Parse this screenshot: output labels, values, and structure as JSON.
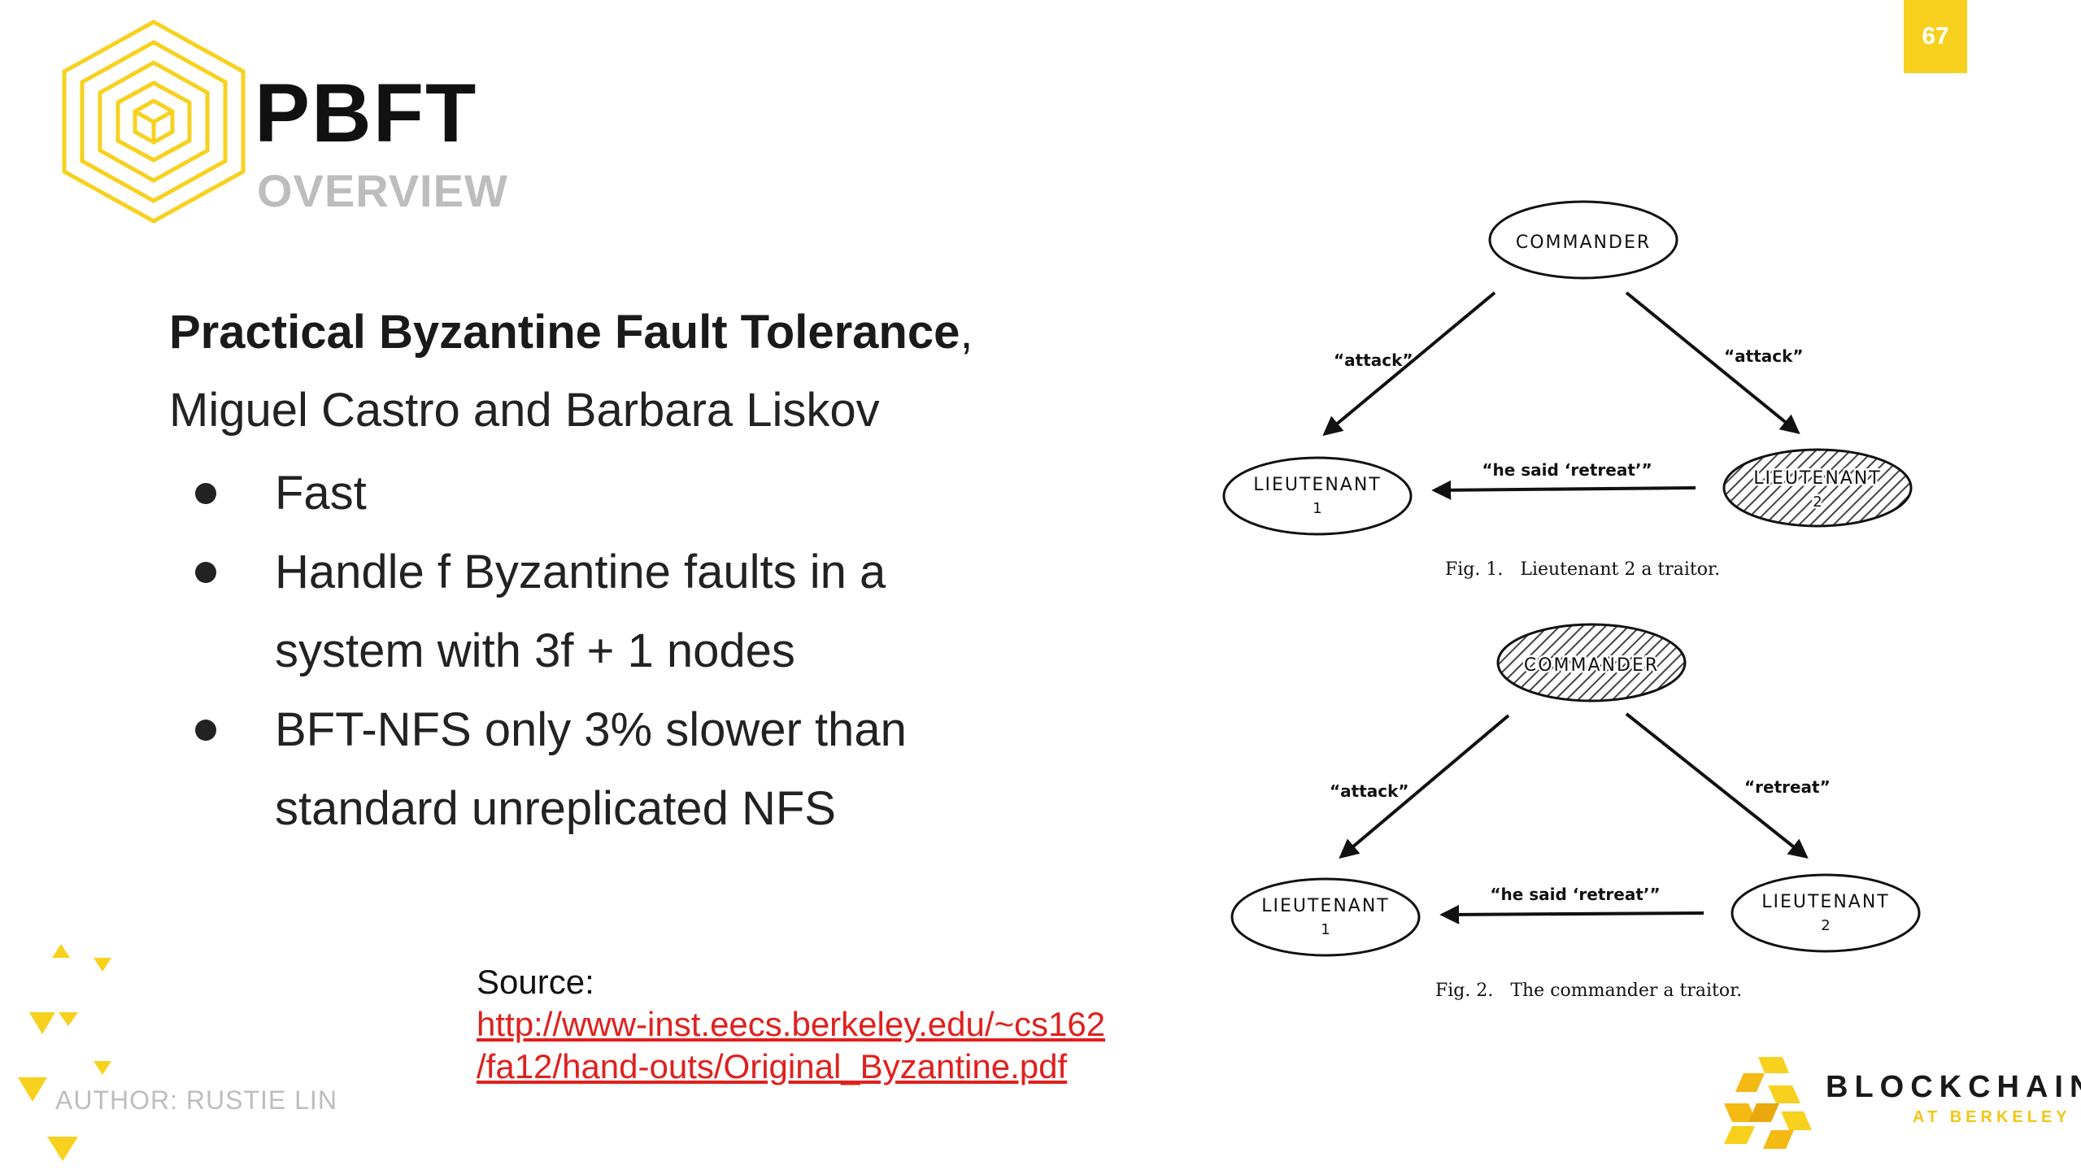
{
  "slide": {
    "page_number": "67",
    "title": "PBFT",
    "subtitle": "OVERVIEW"
  },
  "content": {
    "paper_title": "Practical Byzantine Fault Tolerance",
    "paper_title_suffix": ",",
    "authors": "Miguel Castro and Barbara Liskov",
    "bullets": [
      "Fast",
      "Handle f Byzantine faults in a system with 3f + 1 nodes",
      "BFT-NFS only 3% slower than standard unreplicated NFS"
    ],
    "source_label": "Source:",
    "source_link_line1": "http://www-inst.eecs.berkeley.edu/~cs162",
    "source_link_line2": "/fa12/hand-outs/Original_Byzantine.pdf",
    "author": "AUTHOR: RUSTIE LIN"
  },
  "figure1": {
    "commander": "COMMANDER",
    "lieutenant1_name": "LIEUTENANT",
    "lieutenant1_num": "1",
    "lieutenant2_name": "LIEUTENANT",
    "lieutenant2_num": "2",
    "msg_left": "“attack”",
    "msg_right": "“attack”",
    "msg_between": "“he said ‘retreat’”",
    "caption": "Fig. 1.   Lieutenant 2 a traitor."
  },
  "figure2": {
    "commander": "COMMANDER",
    "lieutenant1_name": "LIEUTENANT",
    "lieutenant1_num": "1",
    "lieutenant2_name": "LIEUTENANT",
    "lieutenant2_num": "2",
    "msg_left": "“attack”",
    "msg_right": "“retreat”",
    "msg_between": "“he said ‘retreat’”",
    "caption": "Fig. 2.   The commander a traitor."
  },
  "brand": {
    "name": "BLOCKCHAIN",
    "sub": "AT BERKELEY"
  },
  "colors": {
    "accent_yellow": "#f7d11e",
    "link_red": "#e0201d",
    "muted_gray": "#bdbdbd"
  }
}
